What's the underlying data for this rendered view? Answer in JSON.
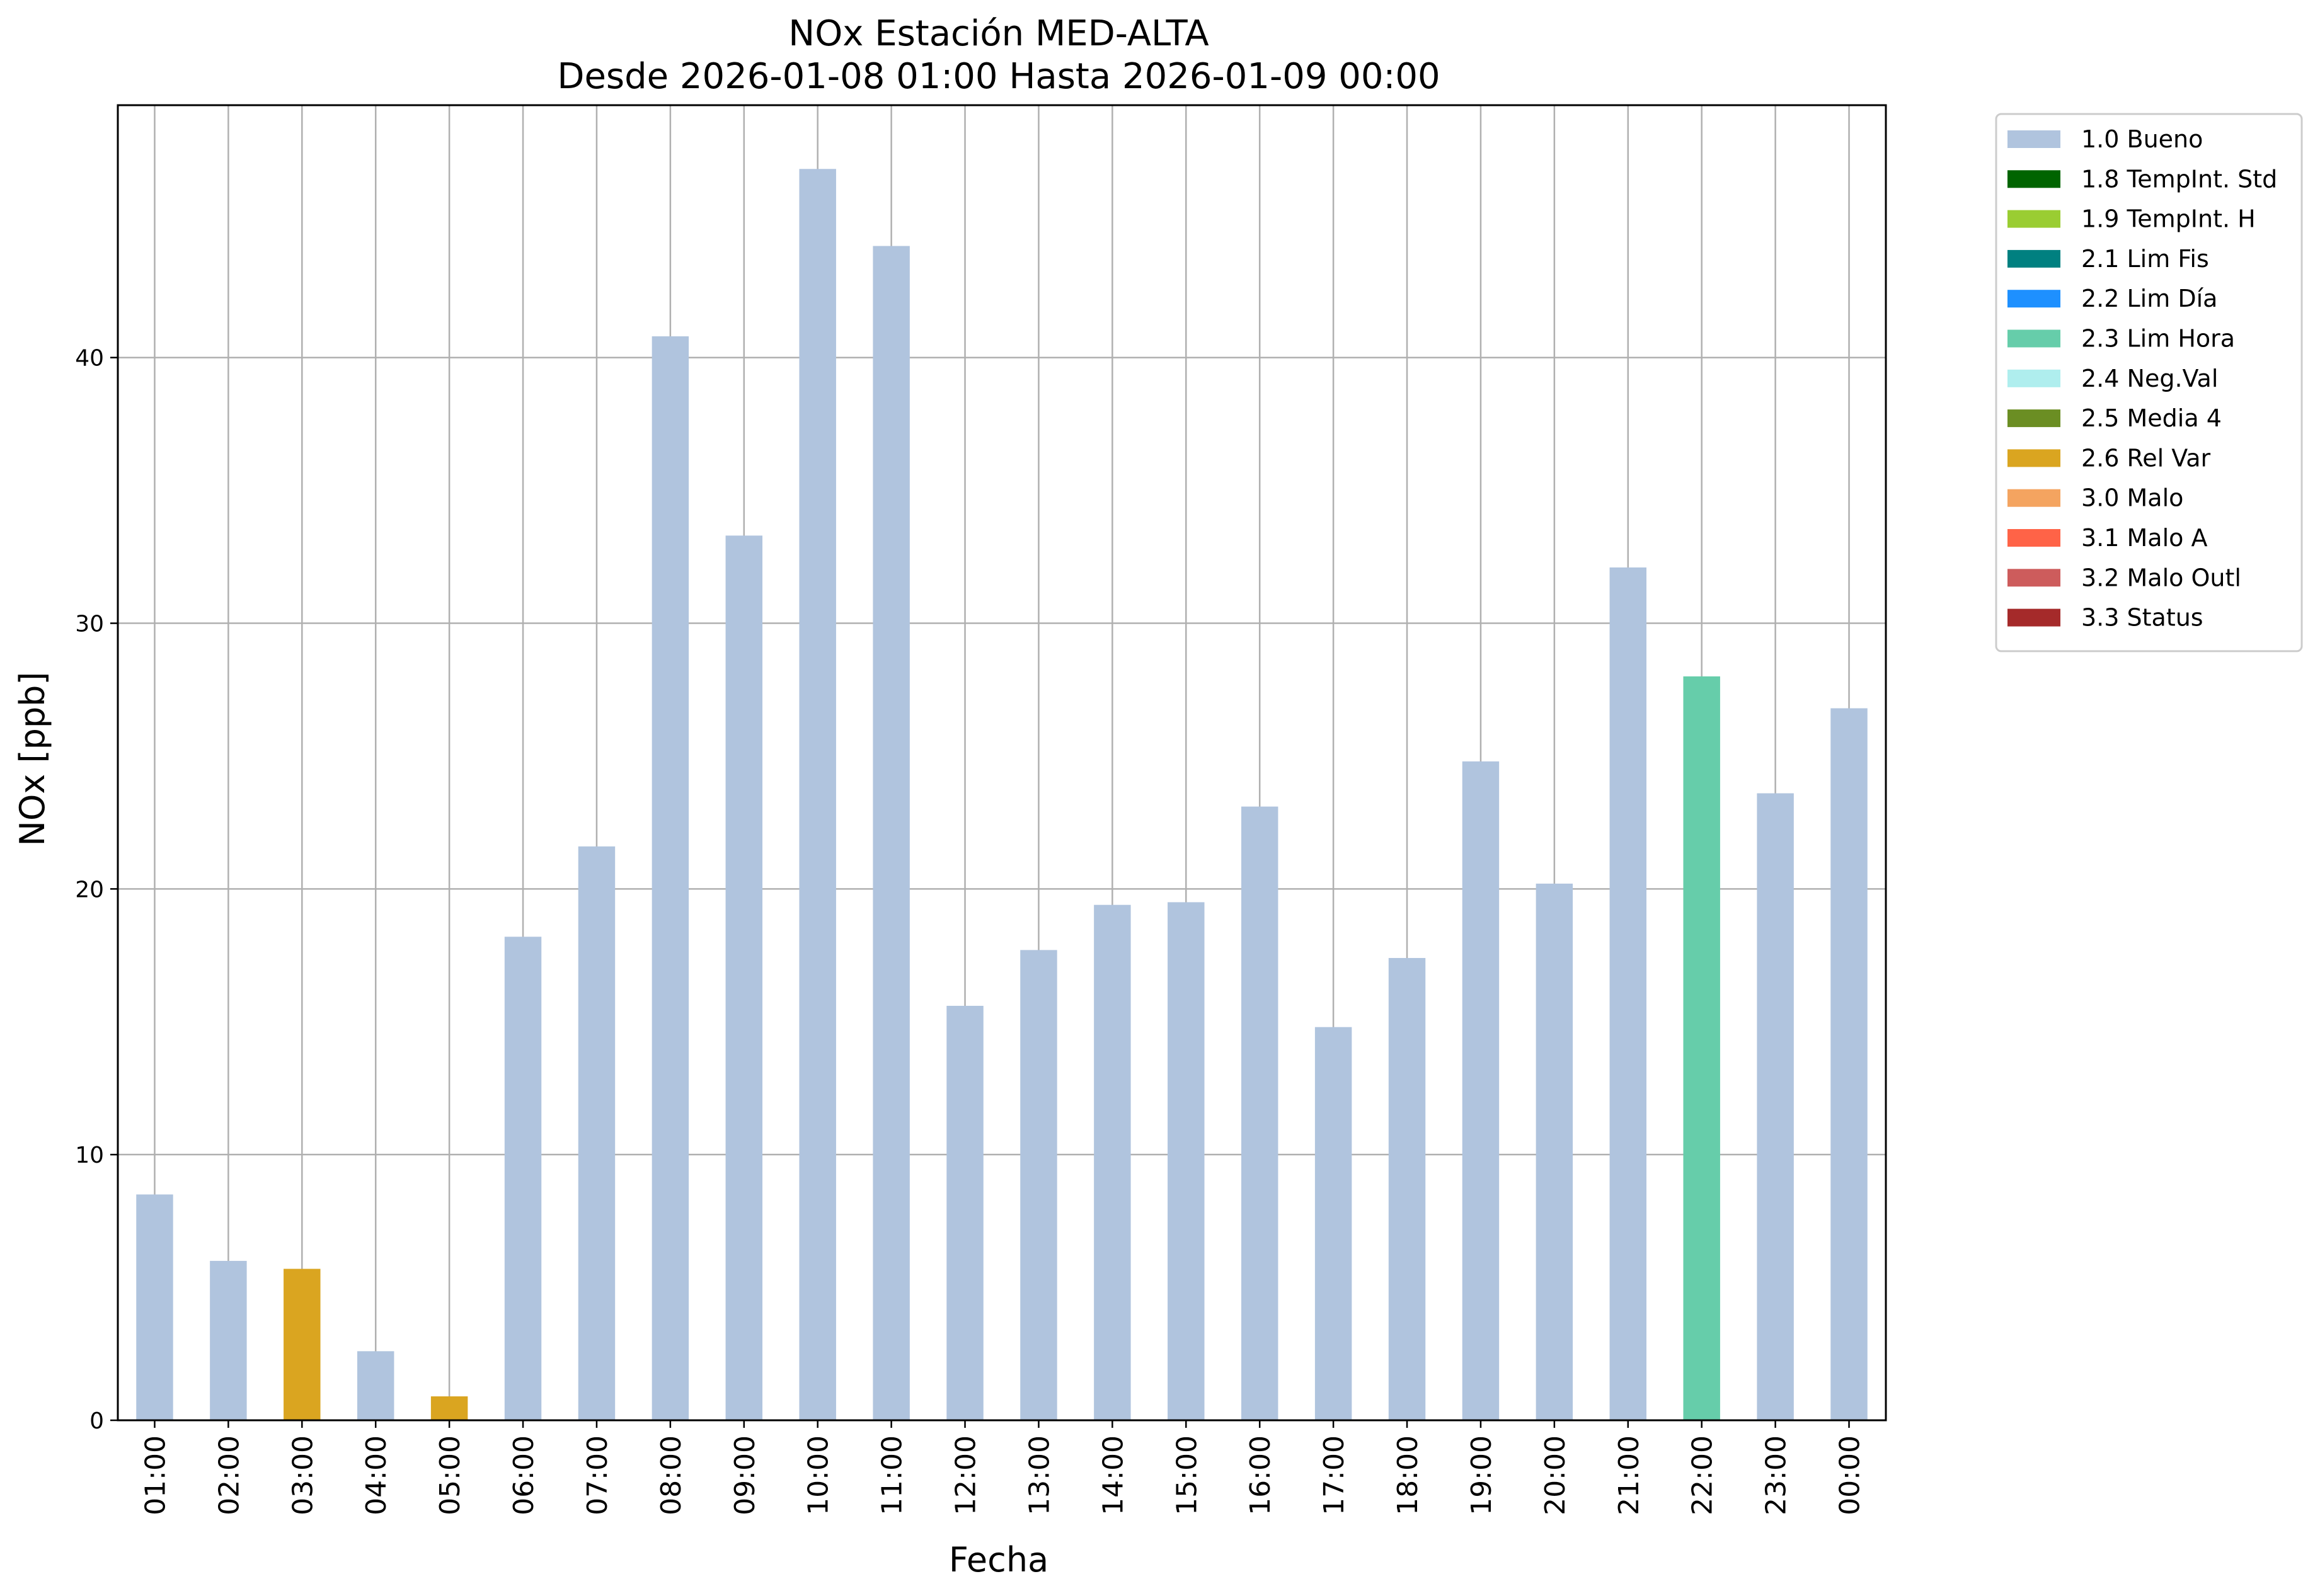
{
  "chart_data": {
    "type": "bar",
    "title": "NOx Estación MED-ALTA",
    "subtitle": "Desde 2026-01-08 01:00 Hasta 2026-01-09 00:00",
    "xlabel": "Fecha",
    "ylabel": "NOx [ppb]",
    "ylim": [
      0,
      49.5
    ],
    "yticks": [
      "0",
      "10",
      "20",
      "30",
      "40"
    ],
    "grid": true,
    "legend_position": "outside-top-right",
    "categories": [
      "01:00",
      "02:00",
      "03:00",
      "04:00",
      "05:00",
      "06:00",
      "07:00",
      "08:00",
      "09:00",
      "10:00",
      "11:00",
      "12:00",
      "13:00",
      "14:00",
      "15:00",
      "16:00",
      "17:00",
      "18:00",
      "19:00",
      "20:00",
      "21:00",
      "22:00",
      "23:00",
      "00:00"
    ],
    "values": [
      8.5,
      6.0,
      5.7,
      2.6,
      0.9,
      18.2,
      21.6,
      40.8,
      33.3,
      47.1,
      44.2,
      15.6,
      17.7,
      19.4,
      19.5,
      23.1,
      14.8,
      17.4,
      24.8,
      20.2,
      32.1,
      28.0,
      23.6,
      26.8
    ],
    "flags": [
      "1.0 Bueno",
      "1.0 Bueno",
      "2.6 Rel Var",
      "1.0 Bueno",
      "2.6 Rel Var",
      "1.0 Bueno",
      "1.0 Bueno",
      "1.0 Bueno",
      "1.0 Bueno",
      "1.0 Bueno",
      "1.0 Bueno",
      "1.0 Bueno",
      "1.0 Bueno",
      "1.0 Bueno",
      "1.0 Bueno",
      "1.0 Bueno",
      "1.0 Bueno",
      "1.0 Bueno",
      "1.0 Bueno",
      "1.0 Bueno",
      "1.0 Bueno",
      "2.3 Lim Hora",
      "1.0 Bueno",
      "1.0 Bueno"
    ],
    "legend": [
      {
        "label": "1.0 Bueno",
        "color": "#b0c4de"
      },
      {
        "label": "1.8 TempInt. Std",
        "color": "#006400"
      },
      {
        "label": "1.9 TempInt. H",
        "color": "#9acd32"
      },
      {
        "label": "2.1 Lim Fis",
        "color": "#008080"
      },
      {
        "label": "2.2 Lim Día",
        "color": "#1e90ff"
      },
      {
        "label": "2.3 Lim Hora",
        "color": "#66cdaa"
      },
      {
        "label": "2.4 Neg.Val",
        "color": "#afeeee"
      },
      {
        "label": "2.5 Media 4",
        "color": "#6b8e23"
      },
      {
        "label": "2.6 Rel Var",
        "color": "#daa520"
      },
      {
        "label": "3.0 Malo",
        "color": "#f4a460"
      },
      {
        "label": "3.1 Malo A",
        "color": "#ff6347"
      },
      {
        "label": "3.2 Malo Outl",
        "color": "#cd5c5c"
      },
      {
        "label": "3.3 Status",
        "color": "#a52a2a"
      }
    ]
  }
}
